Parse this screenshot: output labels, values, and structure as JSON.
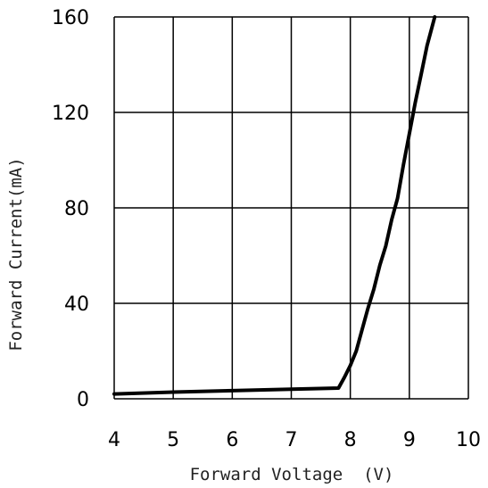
{
  "chart_data": {
    "type": "line",
    "title": "",
    "xlabel": "Forward Voltage  (V)",
    "ylabel": "Forward Current(mA)",
    "xlim": [
      4,
      10
    ],
    "ylim": [
      0,
      160
    ],
    "xticks": [
      4,
      5,
      6,
      7,
      8,
      9,
      10
    ],
    "yticks": [
      0,
      40,
      80,
      120,
      160
    ],
    "xtick_labels": [
      "4",
      "5",
      "6",
      "7",
      "8",
      "9",
      "10"
    ],
    "ytick_labels": [
      "0",
      "40",
      "80",
      "120",
      "160"
    ],
    "grid": true,
    "line_color": "#000000",
    "series": [
      {
        "x": [
          4.0,
          5.0,
          6.0,
          7.0,
          7.8,
          7.9,
          8.0,
          8.1,
          8.2,
          8.3,
          8.4,
          8.5,
          8.6,
          8.7,
          8.8,
          8.9,
          9.0,
          9.1,
          9.2,
          9.3,
          9.43
        ],
        "y": [
          2,
          2.8,
          3.4,
          4.0,
          4.5,
          9,
          14,
          20,
          29,
          38,
          46,
          56,
          64,
          75,
          84,
          98,
          111,
          124,
          136,
          148,
          160
        ]
      }
    ]
  }
}
